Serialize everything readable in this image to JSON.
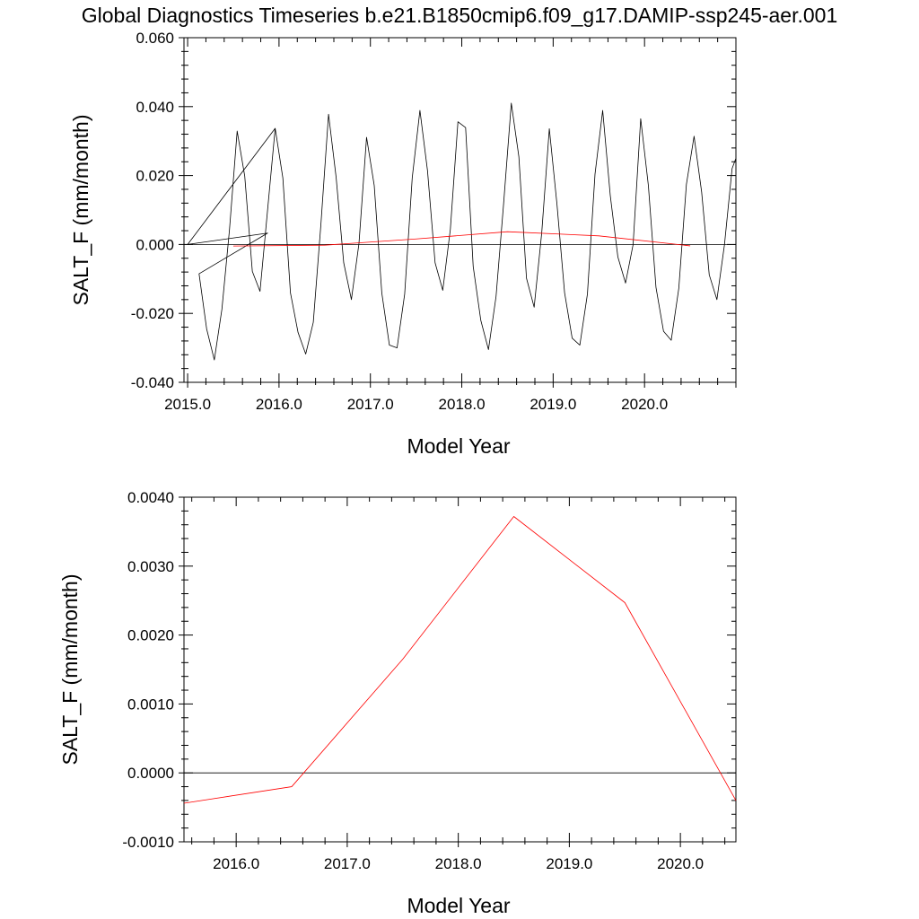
{
  "title": "Global Diagnostics Timeseries b.e21.B1850cmip6.f09_g17.DAMIP-ssp245-aer.001",
  "colors": {
    "monthly": "#000000",
    "annual": "#ff0000",
    "axis": "#000000"
  },
  "chart_data": [
    {
      "type": "line",
      "xlabel": "Model Year",
      "ylabel": "SALT_F (mm/month)",
      "xlim": [
        2014.96,
        2021.0
      ],
      "ylim": [
        -0.04,
        0.06
      ],
      "xticks": [
        {
          "value": 2015.0,
          "label": "2015.0"
        },
        {
          "value": 2016.0,
          "label": "2016.0"
        },
        {
          "value": 2017.0,
          "label": "2017.0"
        },
        {
          "value": 2018.0,
          "label": "2018.0"
        },
        {
          "value": 2019.0,
          "label": "2019.0"
        },
        {
          "value": 2020.0,
          "label": "2020.0"
        }
      ],
      "yticks": [
        {
          "value": 0.06,
          "label": "0.060"
        },
        {
          "value": 0.04,
          "label": "0.040"
        },
        {
          "value": 0.02,
          "label": "0.020"
        },
        {
          "value": 0.0,
          "label": "0.000"
        },
        {
          "value": -0.02,
          "label": "-0.020"
        },
        {
          "value": -0.04,
          "label": "-0.040"
        }
      ],
      "series": [
        {
          "color": "#000000",
          "x": [
            2015.0,
            2015.958,
            2015.0,
            2015.875,
            2015.125,
            2015.208,
            2015.292,
            2015.375,
            2015.458,
            2015.542,
            2015.625,
            2015.708,
            2015.792,
            2015.958,
            2016.042,
            2016.125,
            2016.208,
            2016.292,
            2016.375,
            2016.458,
            2016.542,
            2016.625,
            2016.708,
            2016.792,
            2016.875,
            2016.958,
            2017.042,
            2017.125,
            2017.208,
            2017.292,
            2017.375,
            2017.458,
            2017.542,
            2017.625,
            2017.708,
            2017.792,
            2017.875,
            2017.958,
            2018.042,
            2018.125,
            2018.208,
            2018.292,
            2018.375,
            2018.458,
            2018.542,
            2018.625,
            2018.708,
            2018.792,
            2018.875,
            2018.958,
            2019.042,
            2019.125,
            2019.208,
            2019.292,
            2019.375,
            2019.458,
            2019.542,
            2019.625,
            2019.708,
            2019.792,
            2019.875,
            2019.958,
            2020.042,
            2020.125,
            2020.208,
            2020.292,
            2020.375,
            2020.458,
            2020.542,
            2020.625,
            2020.708,
            2020.792,
            2020.875,
            2020.958,
            2021.0
          ],
          "y": [
            0.0,
            0.0337,
            0.0,
            0.0033,
            -0.0085,
            -0.0245,
            -0.0335,
            -0.0188,
            0.0043,
            0.0329,
            0.0198,
            -0.0078,
            -0.0136,
            0.0337,
            0.0193,
            -0.014,
            -0.0255,
            -0.0318,
            -0.0226,
            0.0057,
            0.0378,
            0.0195,
            -0.0053,
            -0.016,
            0.0003,
            0.0311,
            0.0171,
            -0.0141,
            -0.0292,
            -0.03,
            -0.0144,
            0.0194,
            0.0389,
            0.0214,
            -0.0053,
            -0.0133,
            0.0044,
            0.0356,
            0.0339,
            -0.0064,
            -0.022,
            -0.0305,
            -0.0151,
            0.0119,
            0.041,
            0.0254,
            -0.0098,
            -0.0182,
            0.0034,
            0.0336,
            0.0116,
            -0.014,
            -0.0272,
            -0.0292,
            -0.0144,
            0.0204,
            0.0389,
            0.0142,
            -0.0036,
            -0.0112,
            0.0,
            0.0365,
            0.0171,
            -0.0124,
            -0.0252,
            -0.0278,
            -0.0127,
            0.0174,
            0.0314,
            0.0152,
            -0.0088,
            -0.016,
            0.0,
            0.022,
            0.025
          ]
        },
        {
          "color": "#ff0000",
          "x": [
            2015.5,
            2016.5,
            2017.5,
            2018.5,
            2019.5,
            2020.5
          ],
          "y": [
            -0.00045,
            -0.0002,
            0.0016,
            0.0037,
            0.0025,
            -0.0004
          ]
        }
      ]
    },
    {
      "type": "line",
      "xlabel": "Model Year",
      "ylabel": "SALT_F (mm/month)",
      "xlim": [
        2015.53,
        2020.5
      ],
      "ylim": [
        -0.001,
        0.004
      ],
      "xticks": [
        {
          "value": 2016.0,
          "label": "2016.0"
        },
        {
          "value": 2017.0,
          "label": "2017.0"
        },
        {
          "value": 2018.0,
          "label": "2018.0"
        },
        {
          "value": 2019.0,
          "label": "2019.0"
        },
        {
          "value": 2020.0,
          "label": "2020.0"
        }
      ],
      "yticks": [
        {
          "value": 0.004,
          "label": "0.0040"
        },
        {
          "value": 0.003,
          "label": "0.0030"
        },
        {
          "value": 0.002,
          "label": "0.0020"
        },
        {
          "value": 0.001,
          "label": "0.0010"
        },
        {
          "value": 0.0,
          "label": "0.0000"
        },
        {
          "value": -0.001,
          "label": "-0.0010"
        }
      ],
      "series": [
        {
          "color": "#ff0000",
          "x": [
            2015.53,
            2016.5,
            2017.5,
            2018.5,
            2019.5,
            2020.5
          ],
          "y": [
            -0.00044,
            -0.0002,
            0.00165,
            0.00372,
            0.00247,
            -0.0004
          ]
        }
      ]
    }
  ]
}
